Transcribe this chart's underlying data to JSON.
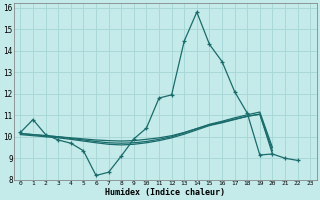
{
  "xlabel": "Humidex (Indice chaleur)",
  "ylabel": "",
  "xlim": [
    -0.5,
    23.5
  ],
  "ylim": [
    8,
    16.2
  ],
  "yticks": [
    8,
    9,
    10,
    11,
    12,
    13,
    14,
    15,
    16
  ],
  "xticks": [
    0,
    1,
    2,
    3,
    4,
    5,
    6,
    7,
    8,
    9,
    10,
    11,
    12,
    13,
    14,
    15,
    16,
    17,
    18,
    19,
    20,
    21,
    22,
    23
  ],
  "bg_color": "#c5eaea",
  "grid_color": "#a8d8d8",
  "line_color": "#1a6b6b",
  "lines": [
    {
      "x": [
        0,
        1,
        2,
        3,
        4,
        5,
        6,
        7,
        8,
        9,
        10,
        11,
        12,
        13,
        14,
        15,
        16,
        17,
        18,
        19,
        20,
        21,
        22
      ],
      "y": [
        10.2,
        10.8,
        10.1,
        9.85,
        9.7,
        9.35,
        8.2,
        8.35,
        9.1,
        9.9,
        10.4,
        11.8,
        11.95,
        14.45,
        15.8,
        14.3,
        13.5,
        12.1,
        11.1,
        9.15,
        9.2,
        9.0,
        8.9
      ],
      "marker": true
    },
    {
      "x": [
        0,
        1,
        2,
        3,
        4,
        5,
        6,
        7,
        8,
        9,
        10,
        11,
        12,
        13,
        14,
        15,
        16,
        17,
        18,
        19,
        20
      ],
      "y": [
        10.15,
        10.1,
        10.05,
        10.0,
        9.95,
        9.9,
        9.85,
        9.82,
        9.8,
        9.82,
        9.88,
        9.95,
        10.05,
        10.2,
        10.38,
        10.55,
        10.68,
        10.82,
        10.95,
        11.05,
        9.2
      ],
      "marker": false
    },
    {
      "x": [
        0,
        1,
        2,
        3,
        4,
        5,
        6,
        7,
        8,
        9,
        10,
        11,
        12,
        13,
        14,
        15,
        16,
        17,
        18,
        19,
        20
      ],
      "y": [
        10.15,
        10.1,
        10.05,
        10.0,
        9.92,
        9.85,
        9.78,
        9.72,
        9.7,
        9.72,
        9.78,
        9.88,
        10.0,
        10.18,
        10.38,
        10.58,
        10.72,
        10.88,
        11.02,
        11.15,
        9.5
      ],
      "marker": false
    },
    {
      "x": [
        0,
        1,
        2,
        3,
        4,
        5,
        6,
        7,
        8,
        9,
        10,
        11,
        12,
        13,
        14,
        15,
        16,
        17,
        18,
        19,
        20
      ],
      "y": [
        10.1,
        10.05,
        10.0,
        9.95,
        9.88,
        9.8,
        9.72,
        9.65,
        9.62,
        9.65,
        9.72,
        9.82,
        9.95,
        10.12,
        10.32,
        10.52,
        10.65,
        10.8,
        10.95,
        11.05,
        9.35
      ],
      "marker": false
    }
  ]
}
